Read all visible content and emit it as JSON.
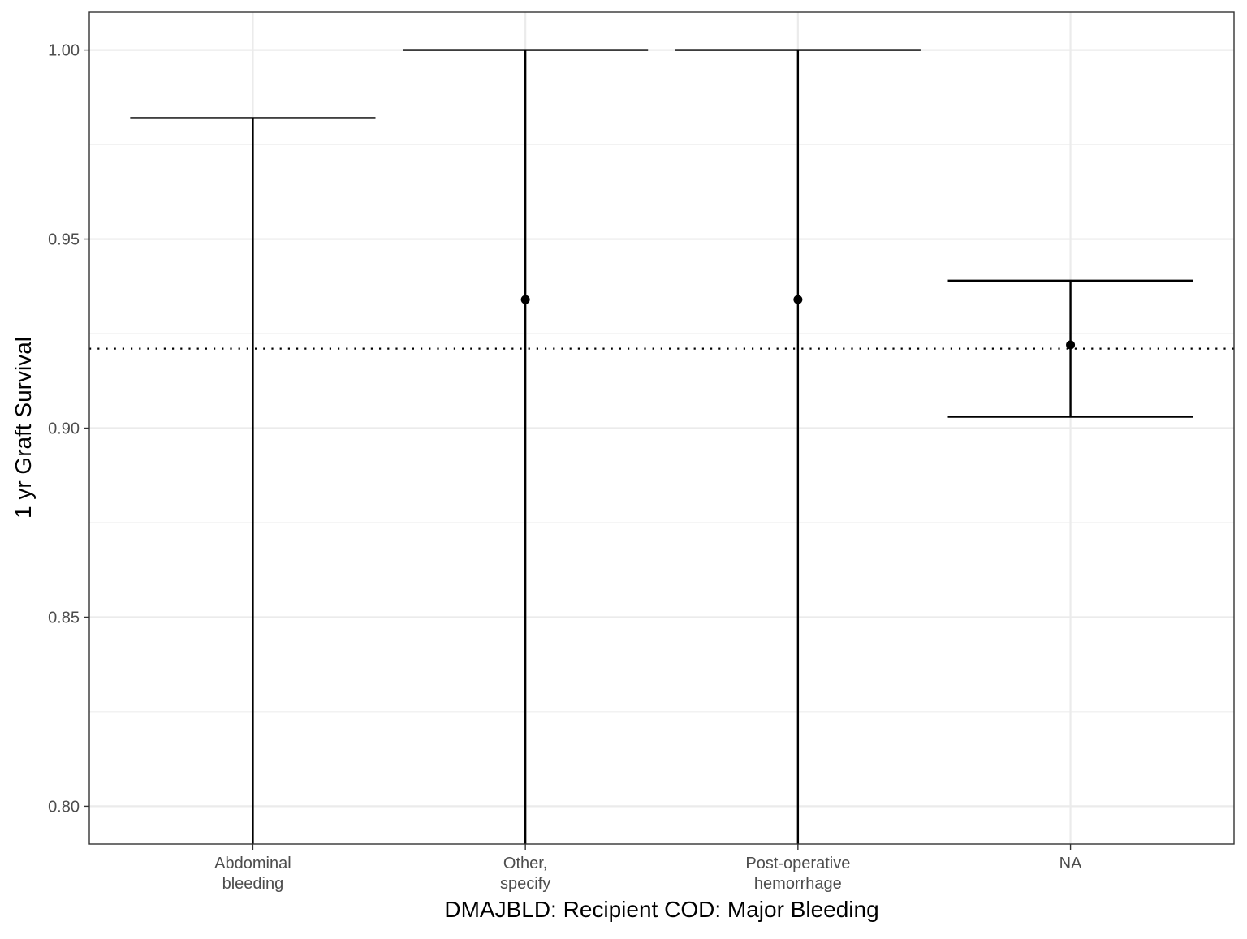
{
  "chart_data": {
    "type": "errorbar",
    "xlabel": "DMAJBLD: Recipient COD: Major Bleeding",
    "ylabel": "1 yr Graft Survival",
    "ylim": [
      0.79,
      1.01
    ],
    "yticks": [
      0.8,
      0.85,
      0.9,
      0.95,
      1.0
    ],
    "ytick_labels": [
      "0.80",
      "0.85",
      "0.90",
      "0.95",
      "1.00"
    ],
    "categories": [
      {
        "lines": [
          "Abdominal",
          "bleeding"
        ]
      },
      {
        "lines": [
          "Other,",
          "specify"
        ]
      },
      {
        "lines": [
          "Post-operative",
          "hemorrhage"
        ]
      },
      {
        "lines": [
          "NA"
        ]
      }
    ],
    "estimates": [
      null,
      0.934,
      0.934,
      0.922
    ],
    "lower": [
      0.79,
      0.79,
      0.79,
      0.903
    ],
    "upper": [
      0.982,
      1.0,
      1.0,
      0.939
    ],
    "reference_line": {
      "value": 0.921,
      "style": "dotted"
    },
    "grid": true,
    "legend": "none",
    "colors": {
      "marks": "#000000",
      "grid": "#ebebeb",
      "panel_border": "#333333"
    }
  }
}
